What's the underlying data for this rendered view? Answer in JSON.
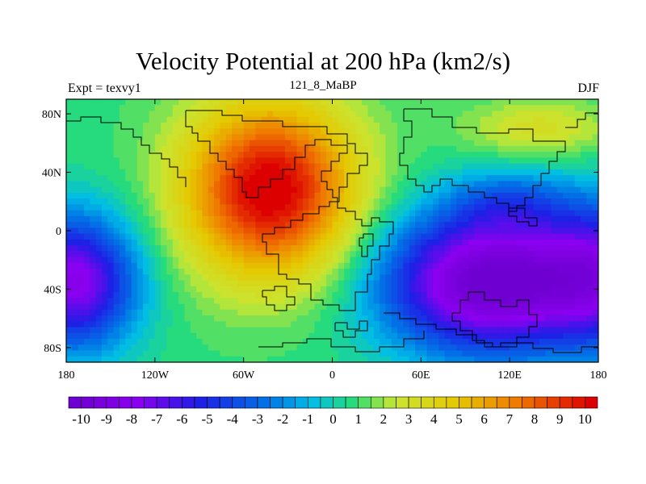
{
  "chart_data": {
    "type": "heatmap",
    "title": "Velocity Potential at 200 hPa (km2/s)",
    "left_subtitle": "Expt = texvy1",
    "center_subtitle": "121_8_MaBP",
    "right_subtitle": "DJF",
    "x_ticks": [
      "180",
      "120W",
      "60W",
      "0",
      "60E",
      "120E",
      "180"
    ],
    "y_ticks": [
      "80N",
      "40N",
      "0",
      "40S",
      "80S"
    ],
    "xlim": [
      -180,
      180
    ],
    "ylim": [
      -90,
      90
    ],
    "x_tick_values": [
      -180,
      -120,
      -60,
      0,
      60,
      120,
      180
    ],
    "y_tick_values": [
      80,
      40,
      0,
      -40,
      -80
    ],
    "colorbar": {
      "min": -10.5,
      "max": 10.5,
      "step": 0.5,
      "labels": [
        "-10",
        "-9",
        "-8",
        "-7",
        "-6",
        "-5",
        "-4",
        "-3",
        "-2",
        "-1",
        "0",
        "1",
        "2",
        "3",
        "4",
        "5",
        "6",
        "7",
        "8",
        "9",
        "10"
      ],
      "label_values": [
        -10,
        -9,
        -8,
        -7,
        -6,
        -5,
        -4,
        -3,
        -2,
        -1,
        0,
        1,
        2,
        3,
        4,
        5,
        6,
        7,
        8,
        9,
        10
      ]
    },
    "field_centers": [
      {
        "name": "max-africa-europe",
        "lon": -40,
        "lat": 35,
        "value": 10.5
      },
      {
        "name": "min-pacific",
        "lon": 105,
        "lat": -25,
        "value": -10.5
      },
      {
        "name": "min-east-pacific",
        "lon": -165,
        "lat": -30,
        "value": -9.5
      }
    ]
  }
}
